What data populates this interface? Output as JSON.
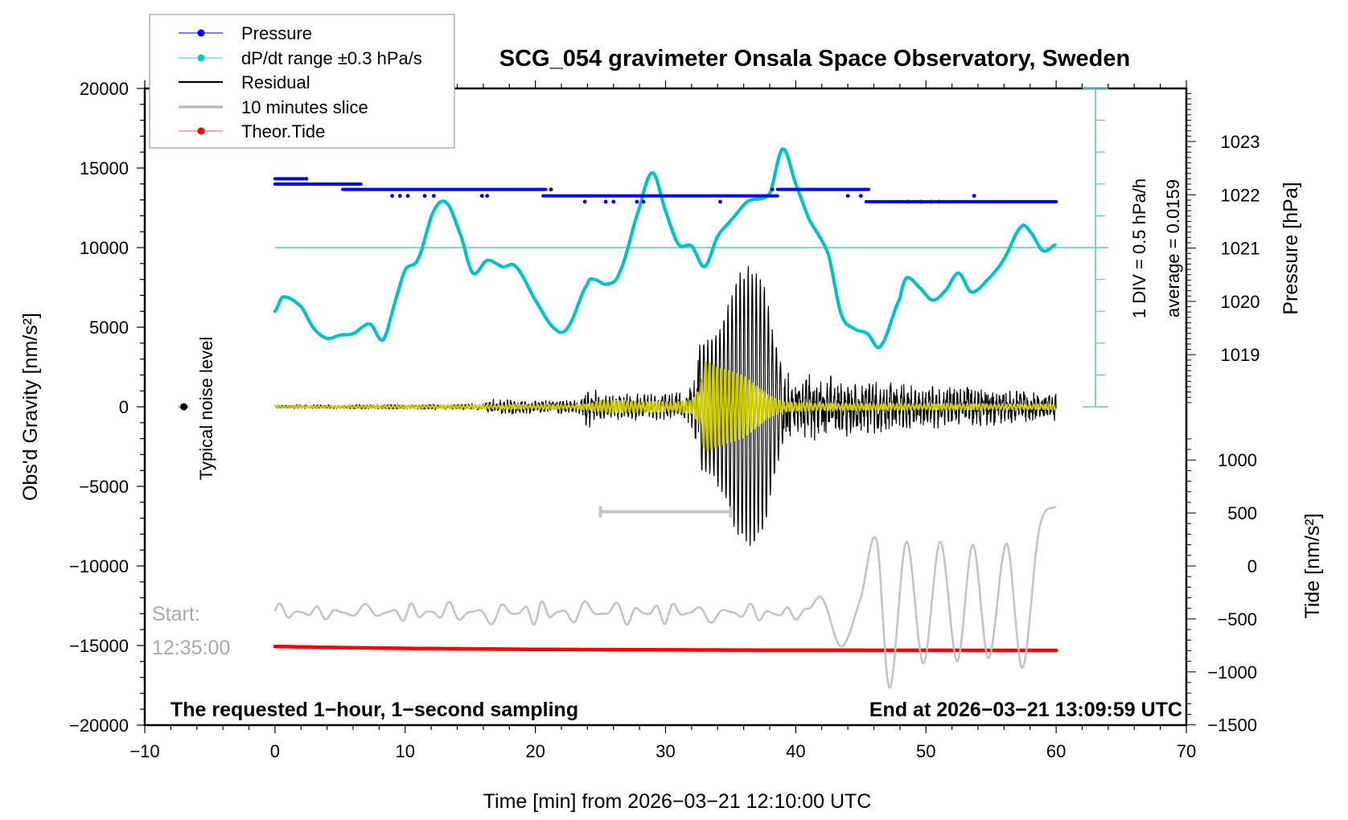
{
  "chart_data": {
    "type": "line",
    "title": "SCG_054 gravimeter Onsala Space Observatory, Sweden",
    "xlabel": "Time [min] from 2026−03−21 12:10:00 UTC",
    "ylabel_left": "Obs'd Gravity [nm/s²]",
    "ylabel_right_pressure": "Pressure [hPa]",
    "ylabel_right_tide": "Tide [nm/s²]",
    "xlim": [
      -10,
      70
    ],
    "ylim": [
      -20000,
      20000
    ],
    "pressure_lim": [
      1017.0,
      1023.95
    ],
    "tide_lim": [
      -1500,
      1500
    ],
    "x_ticks": [
      -10,
      0,
      10,
      20,
      30,
      40,
      50,
      60,
      70
    ],
    "x_tick_labels": [
      "−10",
      "0",
      "10",
      "20",
      "30",
      "40",
      "50",
      "60",
      "70"
    ],
    "y_ticks": [
      20000,
      15000,
      10000,
      5000,
      0,
      -5000,
      -10000,
      -15000,
      -20000
    ],
    "y_tick_labels": [
      "20000",
      "15000",
      "10000",
      "5000",
      "0",
      "−5000",
      "−10000",
      "−15000",
      "−20000"
    ],
    "pressure_ticks": [
      1023,
      1022,
      1021,
      1020,
      1019
    ],
    "pressure_tick_labels": [
      "1023",
      "1022",
      "1021",
      "1020",
      "1019"
    ],
    "tide_ticks": [
      1000,
      500,
      0,
      -500,
      -1000,
      -1500
    ],
    "tide_tick_labels": [
      "1000",
      "500",
      "0",
      "−500",
      "−1000",
      "−1500"
    ],
    "legend": {
      "placement": "top-left",
      "entries": [
        {
          "label": "Pressure",
          "color": "#0000ee",
          "marker": "dot"
        },
        {
          "label": "dP/dt range ±0.3 hPa/s",
          "color": "#00cccc",
          "marker": "dot"
        },
        {
          "label": "Residual",
          "color": "#000000",
          "marker": "line"
        },
        {
          "label": "10 minutes slice",
          "color": "#bdbdbd",
          "marker": "thick-line"
        },
        {
          "label": "Theor.Tide",
          "color": "#ff0000",
          "marker": "dot"
        }
      ]
    },
    "annotations": {
      "bottom_left": "The requested 1−hour, 1−second sampling",
      "bottom_right": "End at 2026−03−21 13:09:59 UTC",
      "start_label": "Start:",
      "start_time": "12:35:00",
      "noise_label": "Typical noise level",
      "div_label": "1 DIV = 0.5 hPa/h",
      "average_label": "average = 0.0159"
    },
    "series": [
      {
        "name": "Pressure",
        "unit": "hPa",
        "color": "#0000ee",
        "segments": [
          {
            "x0": 0.0,
            "x1": 2.2,
            "value": 1022.3
          },
          {
            "x0": 0.0,
            "x1": 6.6,
            "value": 1022.2
          },
          {
            "x0": 5.2,
            "x1": 20.8,
            "value": 1022.1
          },
          {
            "x0": 20.6,
            "x1": 38.6,
            "value": 1021.98
          },
          {
            "x0": 38.6,
            "x1": 45.6,
            "value": 1022.1
          },
          {
            "x0": 45.4,
            "x1": 60.0,
            "value": 1021.87
          }
        ],
        "scatter": [
          {
            "x": 2.4,
            "value": 1022.3
          },
          {
            "x": 9.0,
            "value": 1021.98
          },
          {
            "x": 9.6,
            "value": 1021.98
          },
          {
            "x": 10.2,
            "value": 1021.98
          },
          {
            "x": 11.5,
            "value": 1021.98
          },
          {
            "x": 12.2,
            "value": 1021.98
          },
          {
            "x": 15.9,
            "value": 1021.98
          },
          {
            "x": 16.3,
            "value": 1021.98
          },
          {
            "x": 21.2,
            "value": 1022.1
          },
          {
            "x": 23.8,
            "value": 1021.87
          },
          {
            "x": 25.4,
            "value": 1021.87
          },
          {
            "x": 26.0,
            "value": 1021.87
          },
          {
            "x": 27.8,
            "value": 1021.87
          },
          {
            "x": 28.3,
            "value": 1021.87
          },
          {
            "x": 34.2,
            "value": 1021.87
          },
          {
            "x": 38.2,
            "value": 1022.1
          },
          {
            "x": 44.0,
            "value": 1021.98
          },
          {
            "x": 45.0,
            "value": 1021.98
          },
          {
            "x": 48.6,
            "value": 1021.87
          },
          {
            "x": 49.6,
            "value": 1021.87
          },
          {
            "x": 50.4,
            "value": 1021.87
          },
          {
            "x": 51.0,
            "value": 1021.87
          },
          {
            "x": 53.7,
            "value": 1021.98
          }
        ]
      },
      {
        "name": "dP/dt range ±0.3 hPa/s",
        "unit": "nm/s² (plotted on gravity axis)",
        "color": "#00cccc",
        "reference_level": 10000,
        "x": [
          0,
          0.6,
          2,
          3,
          4,
          5,
          6,
          7.3,
          8.3,
          9.2,
          10,
          11,
          12.2,
          13.2,
          14.3,
          15.2,
          16.3,
          17.5,
          18.5,
          20,
          21.5,
          22.5,
          24,
          24.5,
          25.5,
          26.5,
          28,
          29,
          30,
          31,
          32,
          33,
          34,
          35,
          36.3,
          38,
          39,
          40,
          41,
          42.5,
          43.5,
          44.5,
          45.5,
          46.5,
          48,
          48.5,
          49.5,
          50.5,
          51.5,
          52.5,
          53.5,
          55,
          56,
          57.3,
          58,
          59,
          60
        ],
        "values": [
          6000,
          6900,
          6300,
          4900,
          4300,
          4500,
          4600,
          5200,
          4200,
          6500,
          8600,
          9300,
          12300,
          12800,
          10700,
          8400,
          9200,
          8800,
          8800,
          6700,
          4900,
          5000,
          7700,
          8000,
          7700,
          8500,
          12500,
          14700,
          12300,
          10200,
          10100,
          8800,
          10700,
          11700,
          12900,
          13400,
          16200,
          14000,
          11800,
          9600,
          5800,
          4900,
          4600,
          3800,
          6800,
          8100,
          7500,
          6700,
          7300,
          8400,
          7200,
          8200,
          9300,
          11300,
          11000,
          9800,
          10200
        ]
      },
      {
        "name": "Residual",
        "unit": "nm/s²",
        "color": "#000000",
        "envelope_x": [
          0,
          10,
          16,
          16.5,
          20,
          23.5,
          24,
          25,
          30,
          31.5,
          32,
          32.7,
          33.5,
          34.5,
          35.5,
          36.5,
          37.5,
          38.2,
          39,
          40,
          42,
          45,
          50,
          55,
          60
        ],
        "envelope_amplitude": [
          120,
          150,
          200,
          500,
          400,
          450,
          1500,
          800,
          800,
          900,
          1400,
          4200,
          4300,
          5700,
          8500,
          9000,
          8200,
          5000,
          2300,
          2300,
          2000,
          1700,
          1300,
          1200,
          900
        ]
      },
      {
        "name": "Filtered residual (yellow overlay)",
        "unit": "nm/s²",
        "color": "#cccc00",
        "envelope_x": [
          0,
          24,
          25,
          30,
          32,
          32.7,
          33,
          34,
          36,
          38,
          39,
          42,
          60
        ],
        "envelope_amplitude": [
          60,
          150,
          400,
          300,
          400,
          1200,
          3000,
          2600,
          2000,
          700,
          300,
          200,
          150
        ]
      },
      {
        "name": "10 minutes slice",
        "unit": "nm/s² (tide axis)",
        "color": "#bdbdbd",
        "slice_window_min": [
          25,
          35
        ],
        "slice_marker_level": -6600,
        "x": [
          0,
          3,
          6,
          9,
          12,
          15,
          18,
          21,
          24,
          27,
          30,
          33,
          36,
          39,
          41,
          42,
          43.5,
          45,
          46.2,
          47.2,
          48.5,
          49.8,
          51.1,
          52.4,
          53.6,
          54.8,
          56.2,
          57.4,
          58.7,
          60
        ],
        "baseline": [
          -440,
          -440,
          -440,
          -440,
          -440,
          -440,
          -440,
          -440,
          -440,
          -440,
          -440,
          -440,
          -440,
          -450,
          -420,
          -300,
          -760,
          -300,
          250,
          -1150,
          230,
          -920,
          230,
          -900,
          200,
          -870,
          210,
          -960,
          350,
          560
        ],
        "oscillation_amplitude": [
          80,
          60,
          70,
          80,
          90,
          100,
          110,
          110,
          110,
          110,
          100,
          90,
          80,
          80,
          40,
          0,
          0,
          0,
          0,
          0,
          0,
          0,
          0,
          0,
          0,
          0,
          0,
          0,
          0,
          0
        ]
      },
      {
        "name": "Theor.Tide",
        "unit": "nm/s² (tide axis)",
        "color": "#ff0000",
        "x": [
          0,
          5,
          10,
          20,
          30,
          40,
          50,
          60
        ],
        "values": [
          -760,
          -770,
          -778,
          -787,
          -792,
          -795,
          -796,
          -797
        ]
      }
    ],
    "noise_level_marker": {
      "x": -7,
      "value": 0
    }
  }
}
